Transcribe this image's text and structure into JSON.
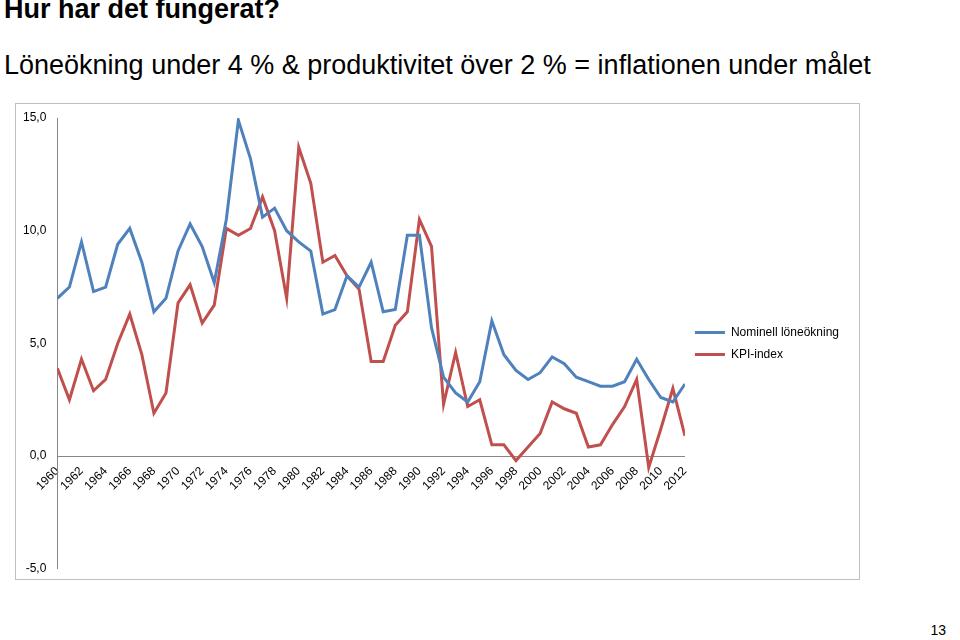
{
  "chart_data": {
    "type": "line",
    "title": "Hur har det fungerat?",
    "subtitle": "Löneökning under 4 % & produktivitet över 2 % = inflationen under målet",
    "x": [
      1960,
      1961,
      1962,
      1963,
      1964,
      1965,
      1966,
      1967,
      1968,
      1969,
      1970,
      1971,
      1972,
      1973,
      1974,
      1975,
      1976,
      1977,
      1978,
      1979,
      1980,
      1981,
      1982,
      1983,
      1984,
      1985,
      1986,
      1987,
      1988,
      1989,
      1990,
      1991,
      1992,
      1993,
      1994,
      1995,
      1996,
      1997,
      1998,
      1999,
      2000,
      2001,
      2002,
      2003,
      2004,
      2005,
      2006,
      2007,
      2008,
      2009,
      2010,
      2011,
      2012
    ],
    "series": [
      {
        "name": "Nominell löneökning",
        "color": "#4f81bd",
        "values": [
          7.0,
          7.5,
          9.5,
          7.3,
          7.5,
          9.4,
          10.1,
          8.6,
          6.4,
          7.0,
          9.1,
          10.3,
          9.3,
          7.7,
          10.5,
          14.9,
          13.2,
          10.6,
          11.0,
          10.0,
          9.5,
          9.1,
          6.3,
          6.5,
          8.0,
          7.5,
          8.6,
          6.4,
          6.5,
          9.8,
          9.8,
          5.7,
          3.5,
          2.8,
          2.4,
          3.3,
          6.0,
          4.5,
          3.8,
          3.4,
          3.7,
          4.4,
          4.1,
          3.5,
          3.3,
          3.1,
          3.1,
          3.3,
          4.3,
          3.4,
          2.6,
          2.4,
          3.2
        ]
      },
      {
        "name": "KPI-index",
        "color": "#c0504d",
        "values": [
          3.9,
          2.5,
          4.3,
          2.9,
          3.4,
          5.0,
          6.3,
          4.5,
          1.9,
          2.8,
          6.8,
          7.6,
          5.9,
          6.7,
          10.1,
          9.8,
          10.1,
          11.5,
          10.0,
          7.0,
          13.7,
          12.1,
          8.6,
          8.9,
          8.0,
          7.4,
          4.2,
          4.2,
          5.8,
          6.4,
          10.5,
          9.3,
          2.3,
          4.6,
          2.2,
          2.5,
          0.5,
          0.5,
          -0.2,
          0.4,
          1.0,
          2.4,
          2.1,
          1.9,
          0.4,
          0.5,
          1.4,
          2.2,
          3.4,
          -0.5,
          1.2,
          3.0,
          0.9
        ]
      }
    ],
    "xlim": [
      1960,
      2012
    ],
    "xticks": [
      1960,
      1962,
      1964,
      1966,
      1968,
      1970,
      1972,
      1974,
      1976,
      1978,
      1980,
      1982,
      1984,
      1986,
      1988,
      1990,
      1992,
      1994,
      1996,
      1998,
      2000,
      2002,
      2004,
      2006,
      2008,
      2010,
      2012
    ],
    "ylim": [
      -5,
      15
    ],
    "yticks": [
      {
        "value": -5,
        "label": "-5,0"
      },
      {
        "value": 0,
        "label": "0,0"
      },
      {
        "value": 5,
        "label": "5,0"
      },
      {
        "value": 10,
        "label": "10,0"
      },
      {
        "value": 15,
        "label": "15,0"
      }
    ],
    "grid": false,
    "legend": "right"
  },
  "page_number": "13"
}
